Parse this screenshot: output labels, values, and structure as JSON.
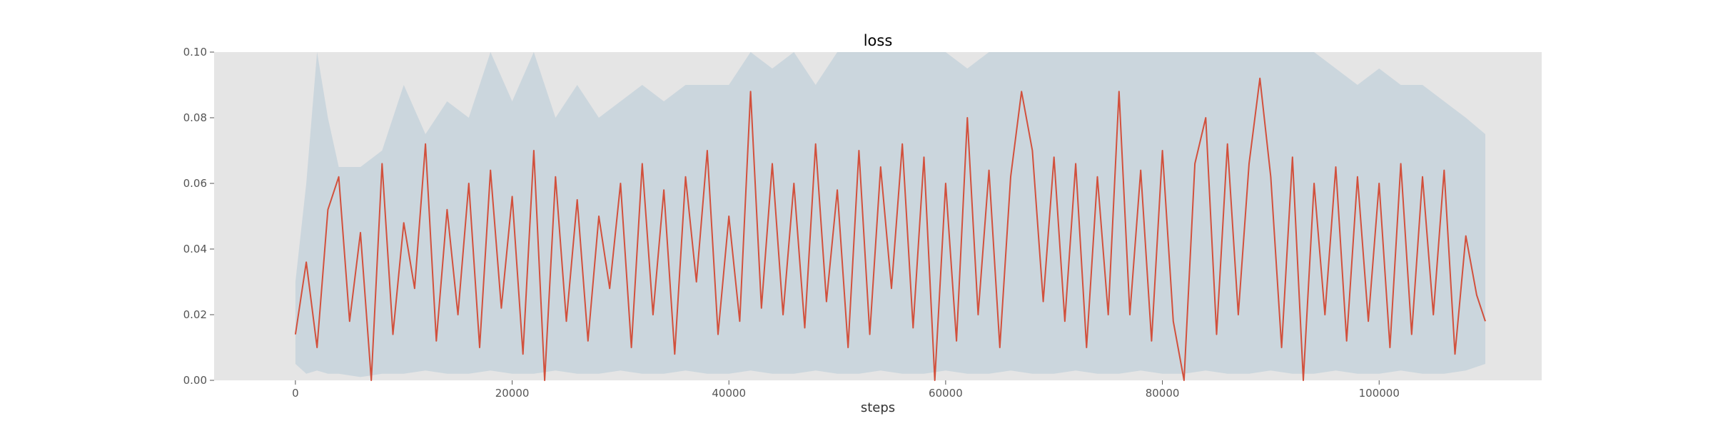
{
  "chart_data": {
    "type": "line",
    "title": "loss",
    "xlabel": "steps",
    "ylabel": "",
    "xlim": [
      -7500,
      115000
    ],
    "ylim": [
      0.0,
      0.1
    ],
    "xticks": [
      0,
      20000,
      40000,
      60000,
      80000,
      100000
    ],
    "xtick_labels": [
      "0",
      "20000",
      "40000",
      "60000",
      "80000",
      "100000"
    ],
    "yticks": [
      0.0,
      0.02,
      0.04,
      0.06,
      0.08,
      0.1
    ],
    "ytick_labels": [
      "0.00",
      "0.02",
      "0.04",
      "0.06",
      "0.08",
      "0.10"
    ],
    "grid": false,
    "background": "#e5e5e5",
    "series": [
      {
        "role": "raw",
        "color": "#c7d3dc",
        "x": [
          0,
          1000,
          2000,
          3000,
          4000,
          6000,
          8000,
          10000,
          12000,
          14000,
          16000,
          18000,
          20000,
          22000,
          24000,
          26000,
          28000,
          30000,
          32000,
          34000,
          36000,
          38000,
          40000,
          42000,
          44000,
          46000,
          48000,
          50000,
          52000,
          54000,
          56000,
          58000,
          60000,
          62000,
          64000,
          66000,
          68000,
          70000,
          72000,
          74000,
          76000,
          78000,
          80000,
          82000,
          84000,
          86000,
          88000,
          90000,
          92000,
          94000,
          96000,
          98000,
          100000,
          102000,
          104000,
          106000,
          108000,
          109800
        ],
        "upper": [
          0.03,
          0.06,
          0.1,
          0.08,
          0.065,
          0.065,
          0.07,
          0.09,
          0.075,
          0.085,
          0.08,
          0.1,
          0.085,
          0.1,
          0.08,
          0.09,
          0.08,
          0.085,
          0.09,
          0.085,
          0.09,
          0.09,
          0.09,
          0.1,
          0.095,
          0.1,
          0.09,
          0.1,
          0.1,
          0.1,
          0.1,
          0.1,
          0.1,
          0.095,
          0.1,
          0.1,
          0.1,
          0.1,
          0.1,
          0.1,
          0.1,
          0.1,
          0.1,
          0.1,
          0.1,
          0.1,
          0.1,
          0.1,
          0.1,
          0.1,
          0.095,
          0.09,
          0.095,
          0.09,
          0.09,
          0.085,
          0.08,
          0.075
        ],
        "lower": [
          0.005,
          0.002,
          0.003,
          0.002,
          0.002,
          0.001,
          0.002,
          0.002,
          0.003,
          0.002,
          0.002,
          0.003,
          0.002,
          0.002,
          0.003,
          0.002,
          0.002,
          0.003,
          0.002,
          0.002,
          0.003,
          0.002,
          0.002,
          0.003,
          0.002,
          0.002,
          0.003,
          0.002,
          0.002,
          0.003,
          0.002,
          0.002,
          0.003,
          0.002,
          0.002,
          0.003,
          0.002,
          0.002,
          0.003,
          0.002,
          0.002,
          0.003,
          0.002,
          0.002,
          0.003,
          0.002,
          0.002,
          0.003,
          0.002,
          0.002,
          0.003,
          0.002,
          0.002,
          0.003,
          0.002,
          0.002,
          0.003,
          0.005
        ]
      },
      {
        "role": "smoothed",
        "color": "#d2503c",
        "x": [
          0,
          1000,
          2000,
          3000,
          4000,
          5000,
          6000,
          7000,
          8000,
          9000,
          10000,
          11000,
          12000,
          13000,
          14000,
          15000,
          16000,
          17000,
          18000,
          19000,
          20000,
          21000,
          22000,
          23000,
          24000,
          25000,
          26000,
          27000,
          28000,
          29000,
          30000,
          31000,
          32000,
          33000,
          34000,
          35000,
          36000,
          37000,
          38000,
          39000,
          40000,
          41000,
          42000,
          43000,
          44000,
          45000,
          46000,
          47000,
          48000,
          49000,
          50000,
          51000,
          52000,
          53000,
          54000,
          55000,
          56000,
          57000,
          58000,
          59000,
          60000,
          61000,
          62000,
          63000,
          64000,
          65000,
          66000,
          67000,
          68000,
          69000,
          70000,
          71000,
          72000,
          73000,
          74000,
          75000,
          76000,
          77000,
          78000,
          79000,
          80000,
          81000,
          82000,
          83000,
          84000,
          85000,
          86000,
          87000,
          88000,
          89000,
          90000,
          91000,
          92000,
          93000,
          94000,
          95000,
          96000,
          97000,
          98000,
          99000,
          100000,
          101000,
          102000,
          103000,
          104000,
          105000,
          106000,
          107000,
          108000,
          109000,
          109800
        ],
        "y": [
          0.014,
          0.036,
          0.01,
          0.052,
          0.062,
          0.018,
          0.045,
          0.0,
          0.066,
          0.014,
          0.048,
          0.028,
          0.072,
          0.012,
          0.052,
          0.02,
          0.06,
          0.01,
          0.064,
          0.022,
          0.056,
          0.008,
          0.07,
          0.0,
          0.062,
          0.018,
          0.055,
          0.012,
          0.05,
          0.028,
          0.06,
          0.01,
          0.066,
          0.02,
          0.058,
          0.008,
          0.062,
          0.03,
          0.07,
          0.014,
          0.05,
          0.018,
          0.088,
          0.022,
          0.066,
          0.02,
          0.06,
          0.016,
          0.072,
          0.024,
          0.058,
          0.01,
          0.07,
          0.014,
          0.065,
          0.028,
          0.072,
          0.016,
          0.068,
          0.0,
          0.06,
          0.012,
          0.08,
          0.02,
          0.064,
          0.01,
          0.062,
          0.088,
          0.07,
          0.024,
          0.068,
          0.018,
          0.066,
          0.01,
          0.062,
          0.02,
          0.088,
          0.02,
          0.064,
          0.012,
          0.07,
          0.018,
          0.0,
          0.066,
          0.08,
          0.014,
          0.072,
          0.02,
          0.066,
          0.092,
          0.062,
          0.01,
          0.068,
          0.0,
          0.06,
          0.02,
          0.065,
          0.012,
          0.062,
          0.018,
          0.06,
          0.01,
          0.066,
          0.014,
          0.062,
          0.02,
          0.064,
          0.008,
          0.044,
          0.026,
          0.018
        ]
      }
    ]
  }
}
